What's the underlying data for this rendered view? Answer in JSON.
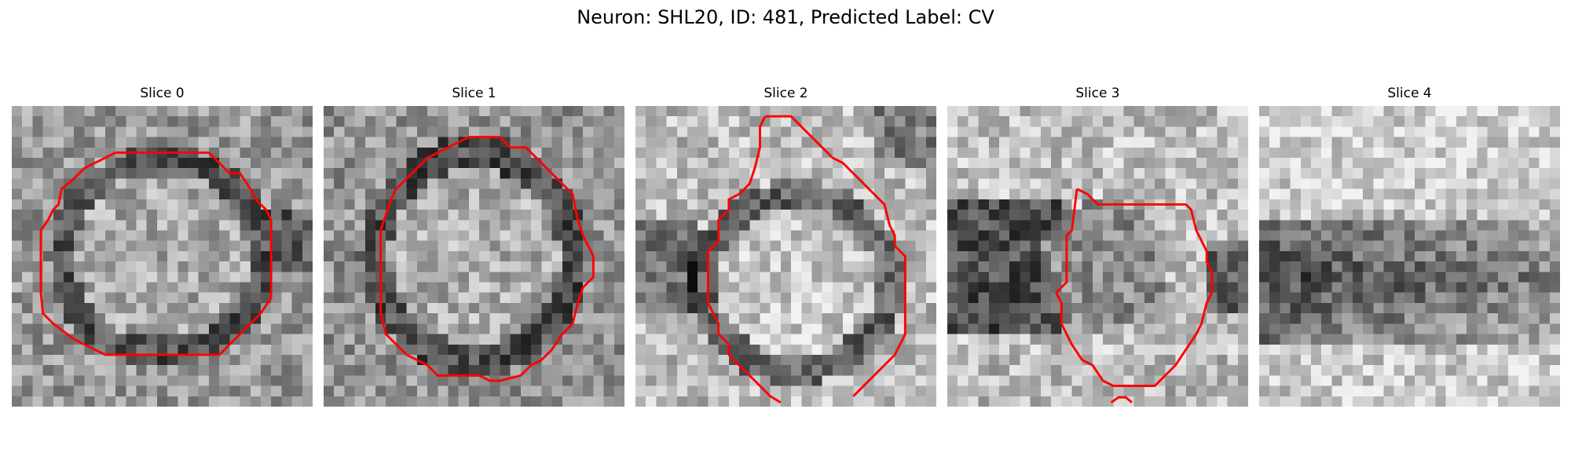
{
  "figure": {
    "title": "Neuron: SHL20, ID: 481, Predicted Label: CV"
  },
  "colors": {
    "contour": "#ff0000",
    "background": "#ffffff"
  },
  "panels": [
    {
      "title": "Slice 0"
    },
    {
      "title": "Slice 1"
    },
    {
      "title": "Slice 2"
    },
    {
      "title": "Slice 3"
    },
    {
      "title": "Slice 4"
    }
  ]
}
